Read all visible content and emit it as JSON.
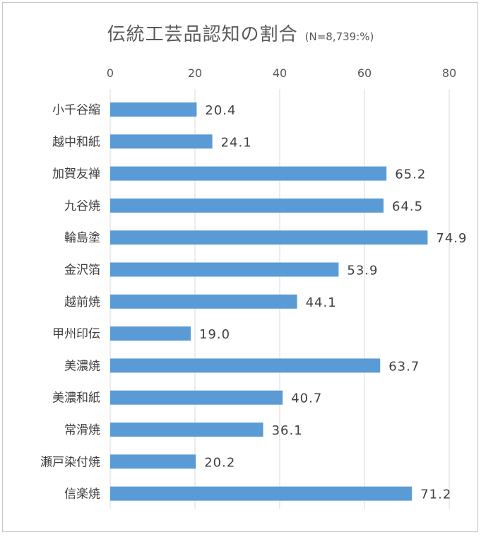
{
  "chart_data": {
    "type": "bar",
    "orientation": "horizontal",
    "title": "伝統工芸品認知の割合",
    "subtitle": "(N=8,739:%)",
    "categories": [
      "小千谷縮",
      "越中和紙",
      "加賀友禅",
      "九谷焼",
      "輪島塗",
      "金沢箔",
      "越前焼",
      "甲州印伝",
      "美濃焼",
      "美濃和紙",
      "常滑焼",
      "瀬戸染付焼",
      "信楽焼"
    ],
    "values": [
      20.4,
      24.1,
      65.2,
      64.5,
      74.9,
      53.9,
      44.1,
      19.0,
      63.7,
      40.7,
      36.1,
      20.2,
      71.2
    ],
    "data_labels": [
      "20.4",
      "24.1",
      "65.2",
      "64.5",
      "74.9",
      "53.9",
      "44.1",
      "19.0",
      "63.7",
      "40.7",
      "36.1",
      "20.2",
      "71.2"
    ],
    "xlim": [
      0,
      80
    ],
    "xticks": [
      0,
      20,
      40,
      60,
      80
    ],
    "xtick_labels": [
      "0",
      "20",
      "40",
      "60",
      "80"
    ],
    "x_axis_position": "top",
    "grid": true,
    "legend": "none",
    "colors": {
      "bar": "#5b9bd5",
      "grid": "#d9d9d9",
      "text": "#595959",
      "border": "#c6c6c6"
    }
  }
}
